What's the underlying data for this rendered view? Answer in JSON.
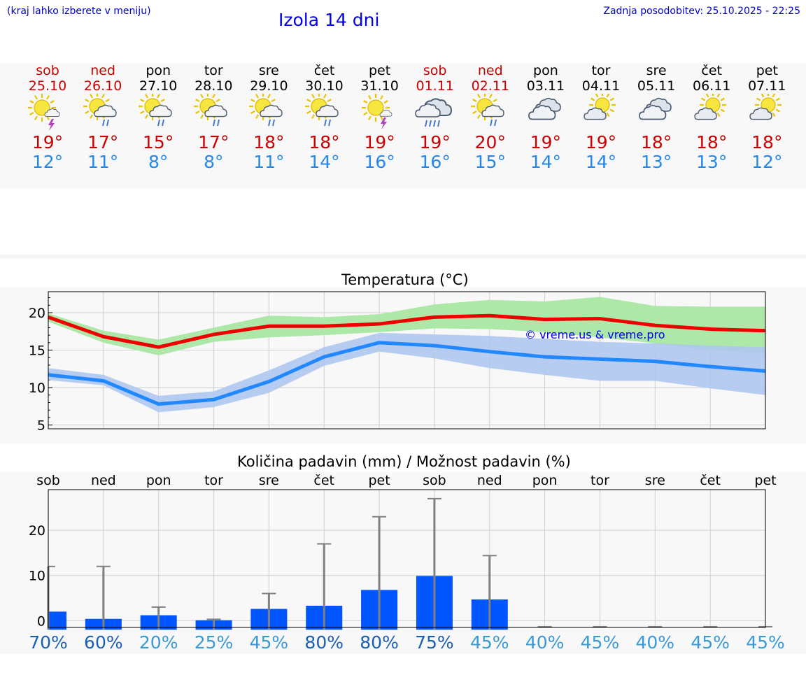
{
  "header": {
    "hint": "(kraj lahko izberete v meniju)",
    "title": "Izola 14 dni",
    "updated": "Zadnja posodobitev: 25.10.2025 - 22:25"
  },
  "colors": {
    "weekend": "#cc0000",
    "weekday": "#000000",
    "tmax": "#cc0000",
    "tmin": "#2288ee",
    "tmax_band": "#aee8a8",
    "tmin_band": "#aec6f0",
    "tmax_line": "#ee0000",
    "tmin_line": "#2288ff",
    "rain_bar": "#0055ff",
    "whisker": "#808080"
  },
  "days": [
    {
      "name": "sob",
      "date": "25.10",
      "weekend": true,
      "icon": "sun-cloud-thunder-icon",
      "tmax": "19°",
      "tmin": "12°"
    },
    {
      "name": "ned",
      "date": "26.10",
      "weekend": true,
      "icon": "sun-cloud-rain-icon",
      "tmax": "17°",
      "tmin": "11°"
    },
    {
      "name": "pon",
      "date": "27.10",
      "weekend": false,
      "icon": "sun-cloud-rain-icon",
      "tmax": "15°",
      "tmin": "8°"
    },
    {
      "name": "tor",
      "date": "28.10",
      "weekend": false,
      "icon": "sun-cloud-rain-icon",
      "tmax": "17°",
      "tmin": "8°"
    },
    {
      "name": "sre",
      "date": "29.10",
      "weekend": false,
      "icon": "sun-cloud-rain-icon",
      "tmax": "18°",
      "tmin": "11°"
    },
    {
      "name": "čet",
      "date": "30.10",
      "weekend": false,
      "icon": "sun-cloud-rain-icon",
      "tmax": "18°",
      "tmin": "14°"
    },
    {
      "name": "pet",
      "date": "31.10",
      "weekend": false,
      "icon": "sun-thunder-icon",
      "tmax": "19°",
      "tmin": "16°"
    },
    {
      "name": "sob",
      "date": "01.11",
      "weekend": true,
      "icon": "cloud-heavy-rain-icon",
      "tmax": "19°",
      "tmin": "16°"
    },
    {
      "name": "ned",
      "date": "02.11",
      "weekend": true,
      "icon": "sun-cloud-rain-icon",
      "tmax": "20°",
      "tmin": "15°"
    },
    {
      "name": "pon",
      "date": "03.11",
      "weekend": false,
      "icon": "cloud-icon",
      "tmax": "19°",
      "tmin": "14°"
    },
    {
      "name": "tor",
      "date": "04.11",
      "weekend": false,
      "icon": "sun-cloud-icon",
      "tmax": "19°",
      "tmin": "14°"
    },
    {
      "name": "sre",
      "date": "05.11",
      "weekend": false,
      "icon": "cloud-icon",
      "tmax": "18°",
      "tmin": "13°"
    },
    {
      "name": "čet",
      "date": "06.11",
      "weekend": false,
      "icon": "sun-cloud-icon",
      "tmax": "18°",
      "tmin": "13°"
    },
    {
      "name": "pet",
      "date": "07.11",
      "weekend": false,
      "icon": "sun-cloud-icon",
      "tmax": "18°",
      "tmin": "12°"
    }
  ],
  "chart_data": [
    {
      "type": "line",
      "title": "Temperatura (°C)",
      "watermark": "© vreme.us & vreme.pro",
      "x": [
        0,
        1,
        2,
        3,
        4,
        5,
        6,
        7,
        8,
        9,
        10,
        11,
        12,
        13
      ],
      "ylim": [
        4.5,
        22.8
      ],
      "yticks": [
        5,
        10,
        15,
        20
      ],
      "grid": true,
      "series": [
        {
          "values": [
            19.4,
            16.8,
            15.4,
            17.1,
            18.2,
            18.2,
            18.5,
            19.4,
            19.6,
            19.1,
            19.2,
            18.3,
            17.8,
            17.6
          ],
          "band_low": [
            18.8,
            16.0,
            14.3,
            16.1,
            16.7,
            17.0,
            17.4,
            17.9,
            17.8,
            17.4,
            16.7,
            15.9,
            15.0,
            14.6
          ],
          "band_high": [
            19.9,
            17.6,
            16.4,
            18.0,
            19.6,
            19.4,
            19.8,
            21.1,
            21.7,
            21.5,
            22.1,
            20.9,
            20.8,
            20.8
          ]
        },
        {
          "values": [
            11.7,
            10.9,
            7.8,
            8.4,
            10.8,
            14.1,
            16.0,
            15.6,
            14.8,
            14.1,
            13.8,
            13.5,
            12.8,
            12.2
          ],
          "band_low": [
            11.0,
            10.3,
            6.7,
            7.4,
            9.3,
            12.9,
            14.8,
            13.9,
            12.6,
            11.7,
            10.9,
            10.9,
            9.9,
            9.0
          ],
          "band_high": [
            12.6,
            11.7,
            8.9,
            9.5,
            12.3,
            15.4,
            17.3,
            17.1,
            16.9,
            16.5,
            16.1,
            15.9,
            15.6,
            15.4
          ]
        }
      ]
    },
    {
      "type": "bar",
      "title": "Količina padavin (mm) / Možnost padavin (%)",
      "categories": [
        "sob",
        "ned",
        "pon",
        "tor",
        "sre",
        "čet",
        "pet",
        "sob",
        "ned",
        "pon",
        "tor",
        "sre",
        "čet",
        "pet"
      ],
      "values": [
        2.0,
        0.4,
        1.2,
        0.1,
        2.6,
        3.3,
        6.8,
        9.9,
        4.7,
        0,
        0,
        0,
        0,
        0
      ],
      "whisker_max": [
        12,
        12,
        3,
        0.3,
        6,
        17,
        23,
        27,
        14.4,
        0,
        0,
        0,
        0,
        0
      ],
      "probability": [
        "70%",
        "60%",
        "20%",
        "25%",
        "45%",
        "80%",
        "80%",
        "75%",
        "45%",
        "40%",
        "45%",
        "40%",
        "45%",
        "45%"
      ],
      "ylim": [
        -1.5,
        29
      ],
      "yticks": [
        0,
        10,
        20
      ],
      "grid": true
    }
  ]
}
